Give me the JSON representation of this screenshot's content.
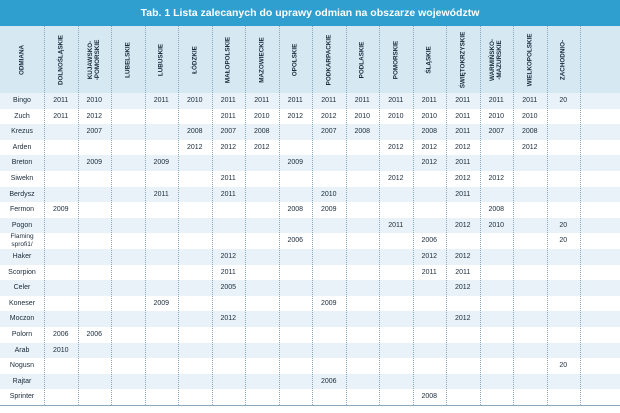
{
  "title": "Tab. 1 Lista zalecanych do uprawy odmian na obszarze województw",
  "header_first": "ODMIANA",
  "columns": [
    "DOLNOŚLĄSKIE",
    "KUJAWSKO-\n-POMORSKIE",
    "LUBELSKIE",
    "LUBUSKIE",
    "ŁÓDZKIE",
    "MAŁOPOLSKIE",
    "MAZOWIECKIE",
    "OPOLSKIE",
    "PODKARPACKIE",
    "PODLASKIE",
    "POMORSKIE",
    "ŚLĄSKIE",
    "ŚWIĘTOKRZYSKIE",
    "WARMIŃSKO-\n-MAZURSKIE",
    "WIELKOPOLSKIE",
    "ZACHODNIO-"
  ],
  "rows": [
    {
      "name": "Bingo",
      "values": [
        "2011",
        "2010",
        "",
        "2011",
        "2010",
        "2011",
        "2011",
        "2011",
        "2011",
        "2011",
        "2011",
        "2011",
        "2011",
        "2011",
        "2011",
        "20"
      ]
    },
    {
      "name": "Zuch",
      "values": [
        "2011",
        "2012",
        "",
        "",
        "",
        "2011",
        "2010",
        "2012",
        "2012",
        "2010",
        "2010",
        "2010",
        "2011",
        "2010",
        "2010",
        ""
      ]
    },
    {
      "name": "Krezus",
      "values": [
        "",
        "2007",
        "",
        "",
        "2008",
        "2007",
        "2008",
        "",
        "2007",
        "2008",
        "",
        "2008",
        "2011",
        "2007",
        "2008",
        ""
      ]
    },
    {
      "name": "Arden",
      "values": [
        "",
        "",
        "",
        "",
        "2012",
        "2012",
        "2012",
        "",
        "",
        "",
        "2012",
        "2012",
        "2012",
        "",
        "2012",
        ""
      ]
    },
    {
      "name": "Breton",
      "values": [
        "",
        "2009",
        "",
        "2009",
        "",
        "",
        "",
        "2009",
        "",
        "",
        "",
        "2012",
        "2011",
        "",
        "",
        ""
      ]
    },
    {
      "name": "Siwekn",
      "values": [
        "",
        "",
        "",
        "",
        "",
        "2011",
        "",
        "",
        "",
        "",
        "2012",
        "",
        "2012",
        "2012",
        "",
        ""
      ]
    },
    {
      "name": "Berdysz",
      "values": [
        "",
        "",
        "",
        "2011",
        "",
        "2011",
        "",
        "",
        "2010",
        "",
        "",
        "",
        "2011",
        "",
        "",
        ""
      ]
    },
    {
      "name": "Fermon",
      "values": [
        "2009",
        "",
        "",
        "",
        "",
        "",
        "",
        "2008",
        "2009",
        "",
        "",
        "",
        "",
        "2008",
        "",
        ""
      ]
    },
    {
      "name": "Pogon",
      "values": [
        "",
        "",
        "",
        "",
        "",
        "",
        "",
        "",
        "",
        "",
        "2011",
        "",
        "2012",
        "2010",
        "",
        "20"
      ]
    },
    {
      "name": "Flaming\nsprofi1/",
      "values": [
        "",
        "",
        "",
        "",
        "",
        "",
        "",
        "2006",
        "",
        "",
        "",
        "2006",
        "",
        "",
        "",
        "20"
      ]
    },
    {
      "name": "Haker",
      "values": [
        "",
        "",
        "",
        "",
        "",
        "2012",
        "",
        "",
        "",
        "",
        "",
        "2012",
        "2012",
        "",
        "",
        ""
      ]
    },
    {
      "name": "Scorpion",
      "values": [
        "",
        "",
        "",
        "",
        "",
        "2011",
        "",
        "",
        "",
        "",
        "",
        "2011",
        "2011",
        "",
        "",
        ""
      ]
    },
    {
      "name": "Celer",
      "values": [
        "",
        "",
        "",
        "",
        "",
        "2005",
        "",
        "",
        "",
        "",
        "",
        "",
        "2012",
        "",
        "",
        ""
      ]
    },
    {
      "name": "Koneser",
      "values": [
        "",
        "",
        "",
        "2009",
        "",
        "",
        "",
        "",
        "2009",
        "",
        "",
        "",
        "",
        "",
        "",
        ""
      ]
    },
    {
      "name": "Moczon",
      "values": [
        "",
        "",
        "",
        "",
        "",
        "2012",
        "",
        "",
        "",
        "",
        "",
        "",
        "2012",
        "",
        "",
        ""
      ]
    },
    {
      "name": "Polorn",
      "values": [
        "2006",
        "2006",
        "",
        "",
        "",
        "",
        "",
        "",
        "",
        "",
        "",
        "",
        "",
        "",
        "",
        ""
      ]
    },
    {
      "name": "Arab",
      "values": [
        "2010",
        "",
        "",
        "",
        "",
        "",
        "",
        "",
        "",
        "",
        "",
        "",
        "",
        "",
        "",
        ""
      ]
    },
    {
      "name": "Nogusn",
      "values": [
        "",
        "",
        "",
        "",
        "",
        "",
        "",
        "",
        "",
        "",
        "",
        "",
        "",
        "",
        "",
        "20"
      ]
    },
    {
      "name": "Rajtar",
      "values": [
        "",
        "",
        "",
        "",
        "",
        "",
        "",
        "",
        "2006",
        "",
        "",
        "",
        "",
        "",
        "",
        ""
      ]
    },
    {
      "name": "Sprinter",
      "values": [
        "",
        "",
        "",
        "",
        "",
        "",
        "",
        "",
        "",
        "",
        "",
        "2008",
        "",
        "",
        "",
        ""
      ]
    }
  ]
}
